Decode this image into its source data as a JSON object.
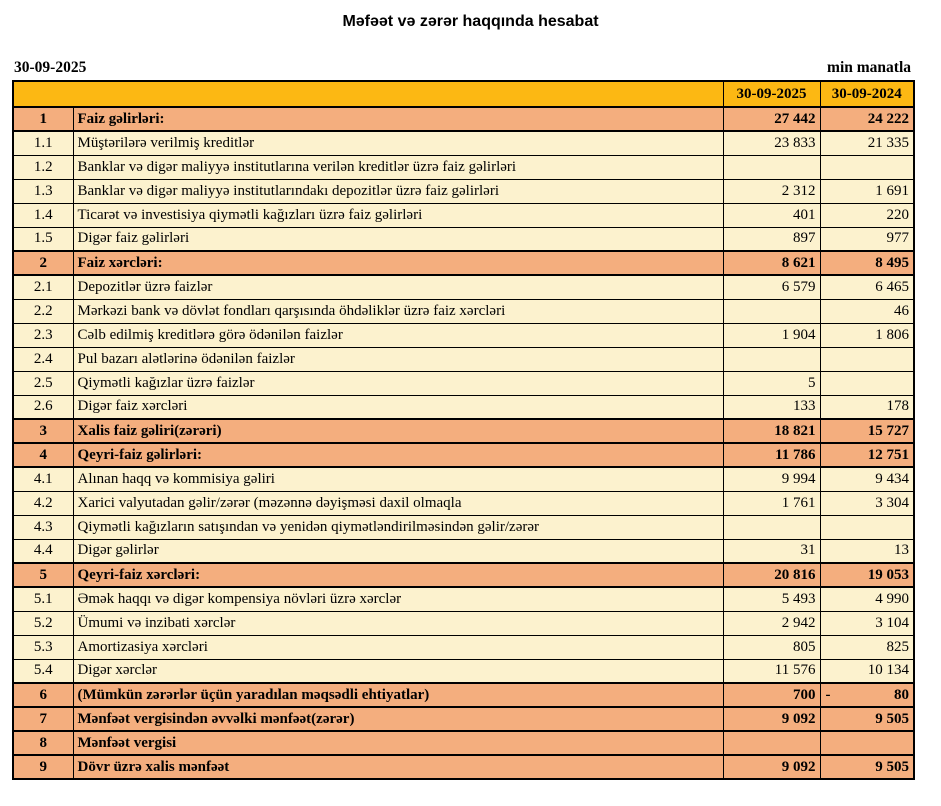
{
  "title": "Məfəət və zərər haqqında hesabat",
  "meta": {
    "date": "30-09-2025",
    "unit": "min manatla"
  },
  "colors": {
    "header_gold": "#FCB813",
    "section_orange": "#F4AE7E",
    "item_cream": "#FCF2CE",
    "border": "#000000"
  },
  "table": {
    "columns": [
      "30-09-2025",
      "30-09-2024"
    ],
    "rows": [
      {
        "no": "1",
        "label": "Faiz gəlirləri:",
        "v2025": "27 442",
        "v2024": "24 222",
        "type": "section"
      },
      {
        "no": "1.1",
        "label": "Müştərilərə verilmiş kreditlər",
        "v2025": "23 833",
        "v2024": "21 335",
        "type": "item"
      },
      {
        "no": "1.2",
        "label": "Banklar və digər maliyyə institutlarına verilən kreditlər üzrə faiz gəlirləri",
        "v2025": "",
        "v2024": "",
        "type": "item"
      },
      {
        "no": "1.3",
        "label": "Banklar və digər maliyyə institutlarındakı depozitlər üzrə faiz gəlirləri",
        "v2025": "2 312",
        "v2024": "1 691",
        "type": "item"
      },
      {
        "no": "1.4",
        "label": "Ticarət və investisiya qiymətli kağızları üzrə faiz gəlirləri",
        "v2025": "401",
        "v2024": "220",
        "type": "item"
      },
      {
        "no": "1.5",
        "label": "Digər faiz gəlirləri",
        "v2025": "897",
        "v2024": "977",
        "type": "item"
      },
      {
        "no": "2",
        "label": "Faiz xərcləri:",
        "v2025": "8 621",
        "v2024": "8 495",
        "type": "section"
      },
      {
        "no": "2.1",
        "label": "Depozitlər üzrə faizlər",
        "v2025": "6 579",
        "v2024": "6 465",
        "type": "item"
      },
      {
        "no": "2.2",
        "label": "Mərkəzi bank və dövlət fondları qarşısında öhdəliklər üzrə faiz xərcləri",
        "v2025": "",
        "v2024": "46",
        "type": "item"
      },
      {
        "no": "2.3",
        "label": "Cəlb edilmiş kreditlərə görə ödənilən faizlər",
        "v2025": "1 904",
        "v2024": "1 806",
        "type": "item"
      },
      {
        "no": "2.4",
        "label": "Pul bazarı alətlərinə ödənilən faizlər",
        "v2025": "",
        "v2024": "",
        "type": "item"
      },
      {
        "no": "2.5",
        "label": "Qiymətli kağızlar üzrə faizlər",
        "v2025": "5",
        "v2024": "",
        "type": "item"
      },
      {
        "no": "2.6",
        "label": "Digər faiz xərcləri",
        "v2025": "133",
        "v2024": "178",
        "type": "item"
      },
      {
        "no": "3",
        "label": "Xalis faiz gəliri(zərəri)",
        "v2025": "18 821",
        "v2024": "15 727",
        "type": "section"
      },
      {
        "no": "4",
        "label": "Qeyri-faiz gəlirləri:",
        "v2025": "11 786",
        "v2024": "12 751",
        "type": "section"
      },
      {
        "no": "4.1",
        "label": "Alınan haqq və kommisiya gəliri",
        "v2025": "9 994",
        "v2024": "9 434",
        "type": "item"
      },
      {
        "no": "4.2",
        "label": "Xarici valyutadan gəlir/zərər (məzənnə dəyişməsi daxil olmaqla",
        "v2025": "1 761",
        "v2024": "3 304",
        "type": "item"
      },
      {
        "no": "4.3",
        "label": "Qiymətli kağızların satışından və yenidən qiymətləndirilməsindən gəlir/zərər",
        "v2025": "",
        "v2024": "",
        "type": "item"
      },
      {
        "no": "4.4",
        "label": "Digər gəlirlər",
        "v2025": "31",
        "v2024": "13",
        "type": "item"
      },
      {
        "no": "5",
        "label": "Qeyri-faiz xərcləri:",
        "v2025": "20 816",
        "v2024": "19 053",
        "type": "section"
      },
      {
        "no": "5.1",
        "label": "Əmək haqqı və digər kompensiya növləri üzrə xərclər",
        "v2025": "5 493",
        "v2024": "4 990",
        "type": "item"
      },
      {
        "no": "5.2",
        "label": "Ümumi və inzibati xərclər",
        "v2025": "2 942",
        "v2024": "3 104",
        "type": "item"
      },
      {
        "no": "5.3",
        "label": "Amortizasiya xərcləri",
        "v2025": "805",
        "v2024": "825",
        "type": "item"
      },
      {
        "no": "5.4",
        "label": "Digər xərclər",
        "v2025": "11 576",
        "v2024": "10 134",
        "type": "item"
      },
      {
        "no": "6",
        "label": "(Mümkün zərərlər üçün yaradılan məqsədli ehtiyatlar)",
        "v2025": "700",
        "v2024": "80",
        "v2024_sign": "-",
        "type": "section"
      },
      {
        "no": "7",
        "label": "Mənfəət vergisindən əvvəlki mənfəət(zərər)",
        "v2025": "9 092",
        "v2024": "9 505",
        "type": "section"
      },
      {
        "no": "8",
        "label": "Mənfəət vergisi",
        "v2025": "",
        "v2024": "",
        "type": "section"
      },
      {
        "no": "9",
        "label": "Dövr üzrə xalis mənfəət",
        "v2025": "9 092",
        "v2024": "9 505",
        "type": "section"
      }
    ]
  }
}
